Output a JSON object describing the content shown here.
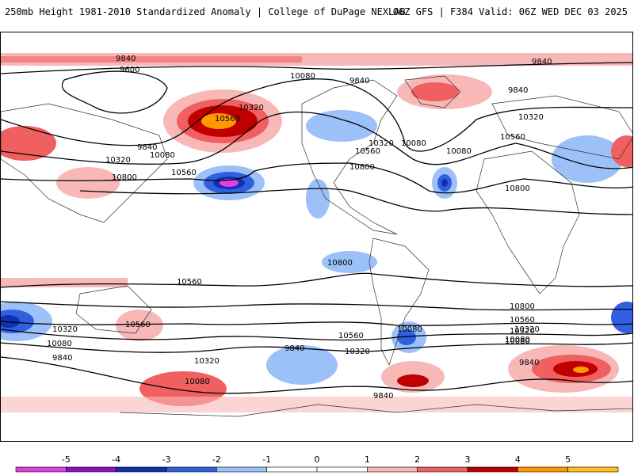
{
  "header": {
    "title_left": "250mb Height 1981-2010 Standardized Anomaly | College of DuPage NEXLAB",
    "title_right": "06Z GFS | F384 Valid: 06Z WED DEC 03 2025"
  },
  "map": {
    "contour_labels": [
      "9840",
      "9600",
      "10080",
      "9840",
      "10320",
      "10560",
      "9840",
      "10080",
      "10320",
      "10800",
      "10560",
      "10320",
      "10560",
      "10080",
      "10800",
      "10080",
      "10560",
      "10320",
      "10800",
      "10800",
      "10560",
      "10320",
      "10080",
      "9840",
      "10320",
      "10080",
      "9840",
      "10560",
      "10560",
      "10320",
      "9840",
      "10320",
      "10080",
      "9840",
      "10080",
      "10800",
      "10560",
      "10320",
      "10080",
      "9840",
      "9840"
    ]
  },
  "legend": {
    "ticks": [
      "-5",
      "-4",
      "-3",
      "-2",
      "-1",
      "0",
      "1",
      "2",
      "3",
      "4",
      "5"
    ],
    "colors": [
      "#e040e0",
      "#9010c0",
      "#1030b0",
      "#3060e0",
      "#9cc0f8",
      "#ffffff",
      "#ffffff",
      "#f8b8b8",
      "#f06060",
      "#c00000",
      "#ff9900",
      "#ffc020"
    ]
  }
}
